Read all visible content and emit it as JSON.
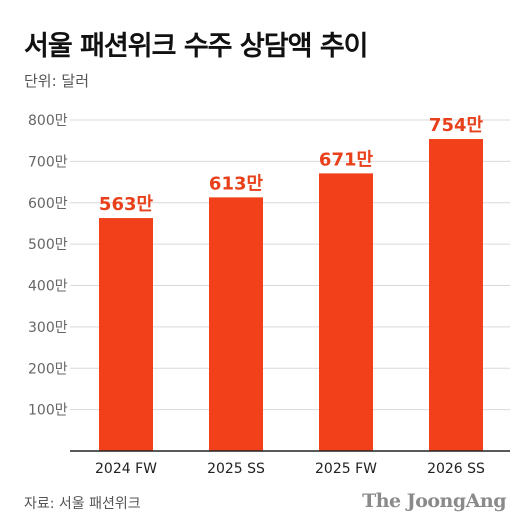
{
  "title": "서울 패션위크 수주 상담액 추이",
  "unit_label": "단위: 달러",
  "source": "자료: 서울 패션위크",
  "brand": "The JoongAng",
  "colors": {
    "bar": "#f2401a",
    "label": "#e8401a",
    "grid": "#d9d9d9",
    "axis": "#222222",
    "tick": "#666666"
  },
  "chart_data": {
    "type": "bar",
    "categories": [
      "2024 FW",
      "2025 SS",
      "2025 FW",
      "2026 SS"
    ],
    "values": [
      563,
      613,
      671,
      754
    ],
    "value_labels": [
      "563만",
      "613만",
      "671만",
      "754만"
    ],
    "yticks": [
      0,
      100,
      200,
      300,
      400,
      500,
      600,
      700,
      800
    ],
    "ytick_labels": [
      "",
      "100만",
      "200만",
      "300만",
      "400만",
      "500만",
      "600만",
      "700만",
      "800만"
    ],
    "ylim": [
      0,
      800
    ],
    "grid": true,
    "unit": "만 달러"
  }
}
